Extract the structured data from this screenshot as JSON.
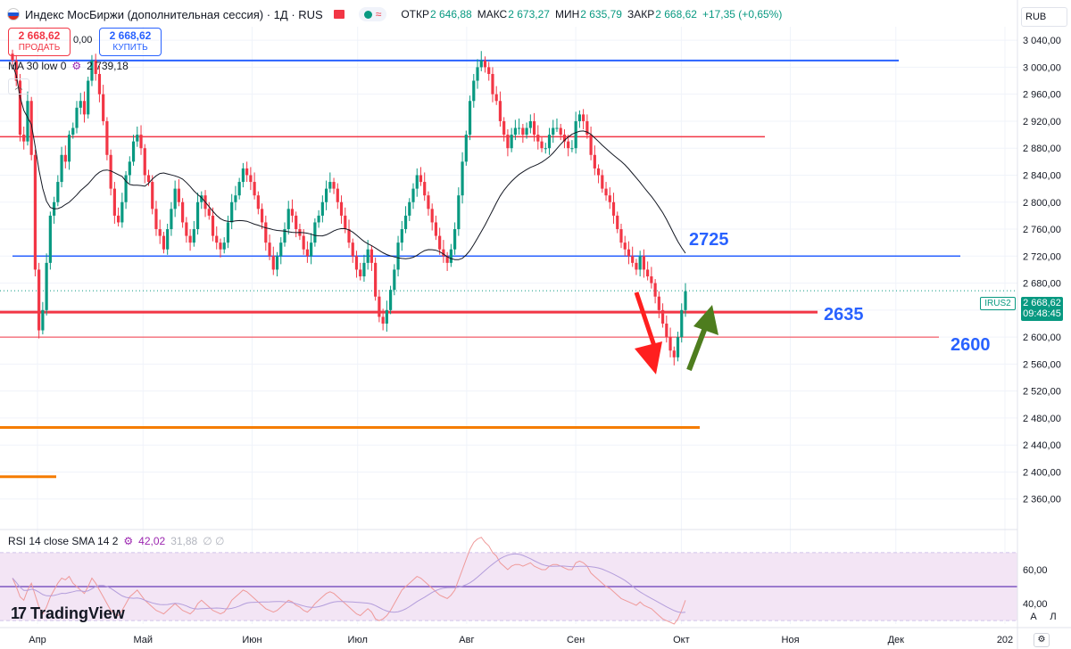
{
  "header": {
    "title": "Индекс МосБиржи (дополнительная сессия) · 1Д · RUS",
    "open_label": "ОТКР",
    "open_value": "2 646,88",
    "high_label": "МАКС",
    "high_value": "2 673,27",
    "low_label": "МИН",
    "low_value": "2 635,79",
    "close_label": "ЗАКР",
    "close_value": "2 668,62",
    "change": "+17,35 (+0,65%)",
    "wave_symbol": "≈"
  },
  "trade": {
    "sell_price": "2 668,62",
    "sell_label": "ПРОДАТЬ",
    "spread": "0,00",
    "buy_price": "2 668,62",
    "buy_label": "КУПИТЬ"
  },
  "ma_legend": {
    "name": "MA 30 low 0",
    "value": "2 739,18"
  },
  "rsi_legend": {
    "name": "RSI 14 close SMA 14 2",
    "rsi_value": "42,02",
    "sma_value": "31,88",
    "extra": "∅ ∅"
  },
  "axis": {
    "currency": "RUB",
    "price_tag_value": "2 668,62",
    "price_tag_time": "09:48:45",
    "ticker_tag": "IRUS2",
    "buttons": [
      "A",
      "Л"
    ]
  },
  "brand": "TradingView",
  "colors": {
    "up": "#089981",
    "down": "#f23645",
    "ma": "#131722",
    "blue_line": "#2962ff",
    "red_line": "#f23645",
    "orange_line": "#f57c00",
    "rsi_fill": "#f3e5f5",
    "rsi_line": "#ef9a9a",
    "rsi_sma": "#9c27b0",
    "arrow_red": "#ff1f1f",
    "arrow_green": "#4e7d1e"
  },
  "chart_data": {
    "type": "candlestick",
    "price_axis": {
      "range": [
        2320,
        3060
      ],
      "ticks": [
        3040,
        3000,
        2960,
        2920,
        2880,
        2840,
        2800,
        2760,
        2720,
        2680,
        2640,
        2600,
        2560,
        2520,
        2480,
        2440,
        2400,
        2360
      ],
      "tick_labels": [
        "3 040,00",
        "3 000,00",
        "2 960,00",
        "2 920,00",
        "2 880,00",
        "2 840,00",
        "2 800,00",
        "2 760,00",
        "2 720,00",
        "2 680,00",
        "2 640,00",
        "2 600,00",
        "2 560,00",
        "2 520,00",
        "2 480,00",
        "2 440,00",
        "2 400,00",
        "2 360,00"
      ]
    },
    "time_axis": {
      "labels": [
        "Апр",
        "Май",
        "Июн",
        "Июл",
        "Авг",
        "Сен",
        "Окт",
        "Ноя",
        "Дек",
        "202"
      ],
      "label_days": [
        0,
        30,
        61,
        91,
        122,
        153,
        183,
        214,
        244,
        275
      ],
      "range_days": [
        -3,
        278
      ]
    },
    "candles_close": [
      3010,
      2980,
      2900,
      2890,
      2950,
      2870,
      2700,
      2610,
      2640,
      2710,
      2780,
      2800,
      2830,
      2870,
      2860,
      2900,
      2910,
      2940,
      2950,
      2930,
      2980,
      3010,
      2990,
      2960,
      2920,
      2870,
      2820,
      2780,
      2770,
      2800,
      2840,
      2860,
      2890,
      2900,
      2880,
      2840,
      2830,
      2790,
      2760,
      2750,
      2730,
      2760,
      2790,
      2820,
      2800,
      2770,
      2750,
      2740,
      2760,
      2800,
      2810,
      2790,
      2780,
      2750,
      2740,
      2730,
      2740,
      2770,
      2800,
      2810,
      2830,
      2850,
      2840,
      2830,
      2810,
      2790,
      2770,
      2740,
      2720,
      2700,
      2720,
      2740,
      2760,
      2790,
      2780,
      2760,
      2750,
      2730,
      2720,
      2740,
      2770,
      2780,
      2800,
      2820,
      2830,
      2820,
      2800,
      2780,
      2760,
      2740,
      2720,
      2700,
      2690,
      2710,
      2730,
      2710,
      2660,
      2630,
      2620,
      2640,
      2670,
      2700,
      2740,
      2760,
      2780,
      2800,
      2820,
      2840,
      2830,
      2810,
      2790,
      2770,
      2750,
      2730,
      2720,
      2710,
      2730,
      2760,
      2810,
      2860,
      2900,
      2950,
      2980,
      3000,
      3010,
      3000,
      2990,
      2960,
      2950,
      2920,
      2900,
      2880,
      2900,
      2910,
      2910,
      2900,
      2910,
      2920,
      2900,
      2890,
      2880,
      2880,
      2900,
      2910,
      2910,
      2900,
      2890,
      2880,
      2880,
      2920,
      2930,
      2920,
      2900,
      2870,
      2850,
      2840,
      2820,
      2810,
      2800,
      2780,
      2760,
      2740,
      2730,
      2720,
      2710,
      2700,
      2720,
      2700,
      2690,
      2680,
      2660,
      2640,
      2620,
      2600,
      2580,
      2570,
      2600,
      2640,
      2668
    ],
    "ma30": {
      "name": "MA 30 low 0",
      "last": 2739.18
    },
    "levels": [
      {
        "label": "",
        "price": 3010,
        "color": "blue"
      },
      {
        "label": "",
        "price": 2897,
        "color": "red"
      },
      {
        "label": "2725",
        "price": 2720,
        "color": "blue"
      },
      {
        "label": "2635",
        "price": 2637,
        "color": "red"
      },
      {
        "label": "2600",
        "price": 2600,
        "color": "red"
      },
      {
        "label": "",
        "price": 2466,
        "color": "orange"
      },
      {
        "label": "",
        "price": 2393,
        "color": "orange"
      }
    ],
    "rsi": {
      "name": "RSI 14 close SMA 14 2",
      "value": 42.02,
      "sma": 31.88,
      "range": [
        28,
        82
      ],
      "ticks": [
        60,
        40
      ],
      "tick_labels": [
        "60,00",
        "40,00"
      ],
      "band": [
        30,
        70
      ],
      "mid": 50,
      "values": [
        55,
        50,
        44,
        42,
        48,
        52,
        45,
        38,
        34,
        38,
        44,
        48,
        52,
        55,
        54,
        56,
        52,
        50,
        48,
        46,
        50,
        55,
        52,
        48,
        44,
        40,
        36,
        34,
        33,
        36,
        40,
        44,
        46,
        48,
        45,
        42,
        40,
        38,
        36,
        35,
        34,
        36,
        38,
        40,
        38,
        36,
        35,
        34,
        36,
        40,
        42,
        40,
        38,
        36,
        35,
        34,
        35,
        38,
        42,
        44,
        46,
        48,
        47,
        45,
        43,
        41,
        39,
        37,
        36,
        35,
        36,
        38,
        40,
        42,
        41,
        39,
        38,
        36,
        35,
        37,
        40,
        42,
        44,
        46,
        47,
        46,
        44,
        42,
        40,
        38,
        36,
        34,
        33,
        35,
        37,
        35,
        31,
        30,
        31,
        33,
        36,
        40,
        44,
        48,
        50,
        52,
        54,
        56,
        55,
        53,
        51,
        49,
        47,
        45,
        44,
        43,
        45,
        48,
        54,
        60,
        66,
        72,
        76,
        78,
        79,
        76,
        74,
        70,
        68,
        64,
        62,
        60,
        62,
        63,
        63,
        62,
        63,
        64,
        62,
        61,
        60,
        60,
        62,
        63,
        63,
        62,
        61,
        60,
        60,
        64,
        65,
        64,
        62,
        58,
        56,
        54,
        52,
        50,
        49,
        47,
        45,
        43,
        42,
        41,
        40,
        39,
        41,
        39,
        38,
        37,
        35,
        33,
        31,
        30,
        29,
        28,
        31,
        36,
        42
      ]
    }
  }
}
